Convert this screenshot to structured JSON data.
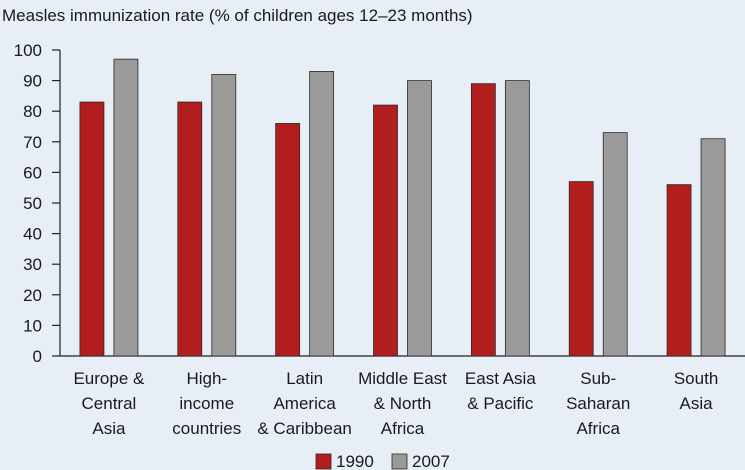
{
  "chart_data": {
    "type": "bar",
    "title": "Measles immunization rate (% of children ages 12–23 months)",
    "xlabel": "",
    "ylabel": "",
    "ylim": [
      0,
      100
    ],
    "yticks": [
      0,
      10,
      20,
      30,
      40,
      50,
      60,
      70,
      80,
      90,
      100
    ],
    "grid": false,
    "legend_position": "bottom",
    "categories": [
      [
        "Europe &",
        "Central",
        "Asia"
      ],
      [
        "High-",
        "income",
        "countries"
      ],
      [
        "Latin",
        "America",
        "& Caribbean"
      ],
      [
        "Middle East",
        "& North",
        "Africa"
      ],
      [
        "East Asia",
        "& Pacific"
      ],
      [
        "Sub-",
        "Saharan",
        "Africa"
      ],
      [
        "South",
        "Asia"
      ]
    ],
    "series": [
      {
        "name": "1990",
        "color": "#b21e1e",
        "values": [
          83,
          83,
          76,
          82,
          89,
          57,
          56
        ]
      },
      {
        "name": "2007",
        "color": "#9a9a9a",
        "values": [
          97,
          92,
          93,
          90,
          90,
          73,
          71
        ]
      }
    ]
  }
}
